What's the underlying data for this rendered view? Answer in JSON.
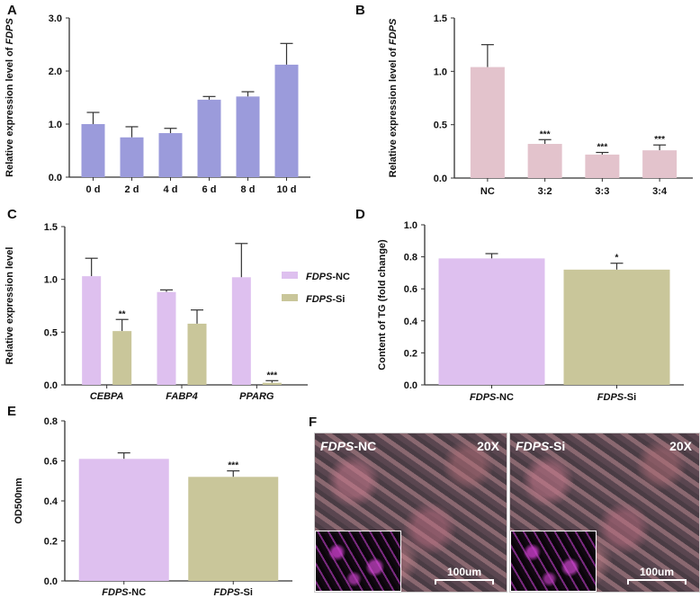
{
  "colors": {
    "purple_blue": "#9b9bdb",
    "pink": "#e3c3cc",
    "lavender": "#dec0ef",
    "olive": "#c9c69a",
    "axis": "#333333"
  },
  "chart_data": [
    {
      "panel": "A",
      "type": "bar",
      "ylabel_prefix": "Relative expression level of ",
      "ylabel_italic": "FDPS",
      "categories": [
        "0 d",
        "2 d",
        "4 d",
        "6 d",
        "8 d",
        "10 d"
      ],
      "values": [
        1.0,
        0.75,
        0.83,
        1.46,
        1.52,
        2.12
      ],
      "errors_upper": [
        1.22,
        0.95,
        0.92,
        1.52,
        1.61,
        2.52
      ],
      "ylim": [
        0,
        3
      ],
      "yticks": [
        "0.0",
        "1.0",
        "2.0",
        "3.0"
      ],
      "ytick_values": [
        0,
        1,
        2,
        3
      ],
      "significance": [
        "",
        "",
        "",
        "",
        "",
        ""
      ]
    },
    {
      "panel": "B",
      "type": "bar",
      "ylabel_prefix": "Relative expression level of ",
      "ylabel_italic": "FDPS",
      "categories": [
        "NC",
        "3:2",
        "3:3",
        "3:4"
      ],
      "values": [
        1.04,
        0.32,
        0.22,
        0.26
      ],
      "errors_upper": [
        1.25,
        0.36,
        0.24,
        0.31
      ],
      "ylim": [
        0,
        1.5
      ],
      "yticks": [
        "0.0",
        "0.5",
        "1.0",
        "1.5"
      ],
      "ytick_values": [
        0,
        0.5,
        1,
        1.5
      ],
      "significance": [
        "",
        "***",
        "***",
        "***"
      ]
    },
    {
      "panel": "C",
      "type": "grouped-bar",
      "ylabel_prefix": "Relative expression level",
      "ylabel_italic": "",
      "categories": [
        "CEBPA",
        "FABP4",
        "PPARG"
      ],
      "series": [
        {
          "name_italic": "FDPS",
          "name_rest": "-NC",
          "values": [
            1.03,
            0.88,
            1.02
          ],
          "errors_upper": [
            1.2,
            0.9,
            1.34
          ],
          "significance": [
            "",
            "",
            ""
          ]
        },
        {
          "name_italic": "FDPS",
          "name_rest": "-Si",
          "values": [
            0.51,
            0.58,
            0.02
          ],
          "errors_upper": [
            0.62,
            0.71,
            0.04
          ],
          "significance": [
            "**",
            "",
            "***"
          ]
        }
      ],
      "ylim": [
        0,
        1.5
      ],
      "yticks": [
        "0.0",
        "0.5",
        "1.0",
        "1.5"
      ],
      "ytick_values": [
        0,
        0.5,
        1,
        1.5
      ],
      "legend": "right"
    },
    {
      "panel": "D",
      "type": "bar",
      "ylabel_prefix": "Content of TG (fold change)",
      "ylabel_italic": "",
      "categories_italic": [
        "FDPS",
        "FDPS"
      ],
      "categories": [
        "-NC",
        "-Si"
      ],
      "values": [
        0.79,
        0.72
      ],
      "errors_upper": [
        0.82,
        0.76
      ],
      "ylim": [
        0,
        1.0
      ],
      "yticks": [
        "0.0",
        "0.2",
        "0.4",
        "0.6",
        "0.8",
        "1.0"
      ],
      "ytick_values": [
        0,
        0.2,
        0.4,
        0.6,
        0.8,
        1.0
      ],
      "significance": [
        "",
        "*"
      ]
    },
    {
      "panel": "E",
      "type": "bar",
      "ylabel_prefix": "OD500nm",
      "ylabel_italic": "",
      "categories_italic": [
        "FDPS",
        "FDPS"
      ],
      "categories": [
        "-NC",
        "-Si"
      ],
      "values": [
        0.61,
        0.52
      ],
      "errors_upper": [
        0.64,
        0.55
      ],
      "ylim": [
        0,
        0.8
      ],
      "yticks": [
        "0.0",
        "0.2",
        "0.4",
        "0.6",
        "0.8"
      ],
      "ytick_values": [
        0,
        0.2,
        0.4,
        0.6,
        0.8
      ],
      "significance": [
        "",
        "***"
      ]
    }
  ],
  "panel_f": {
    "images": [
      {
        "label_italic": "FDPS",
        "label_rest": "-NC",
        "magnification": "20X",
        "scale_bar": "100um"
      },
      {
        "label_italic": "FDPS",
        "label_rest": "-Si",
        "magnification": "20X",
        "scale_bar": "100um"
      }
    ]
  },
  "panel_letters": [
    "A",
    "B",
    "C",
    "D",
    "E",
    "F"
  ]
}
